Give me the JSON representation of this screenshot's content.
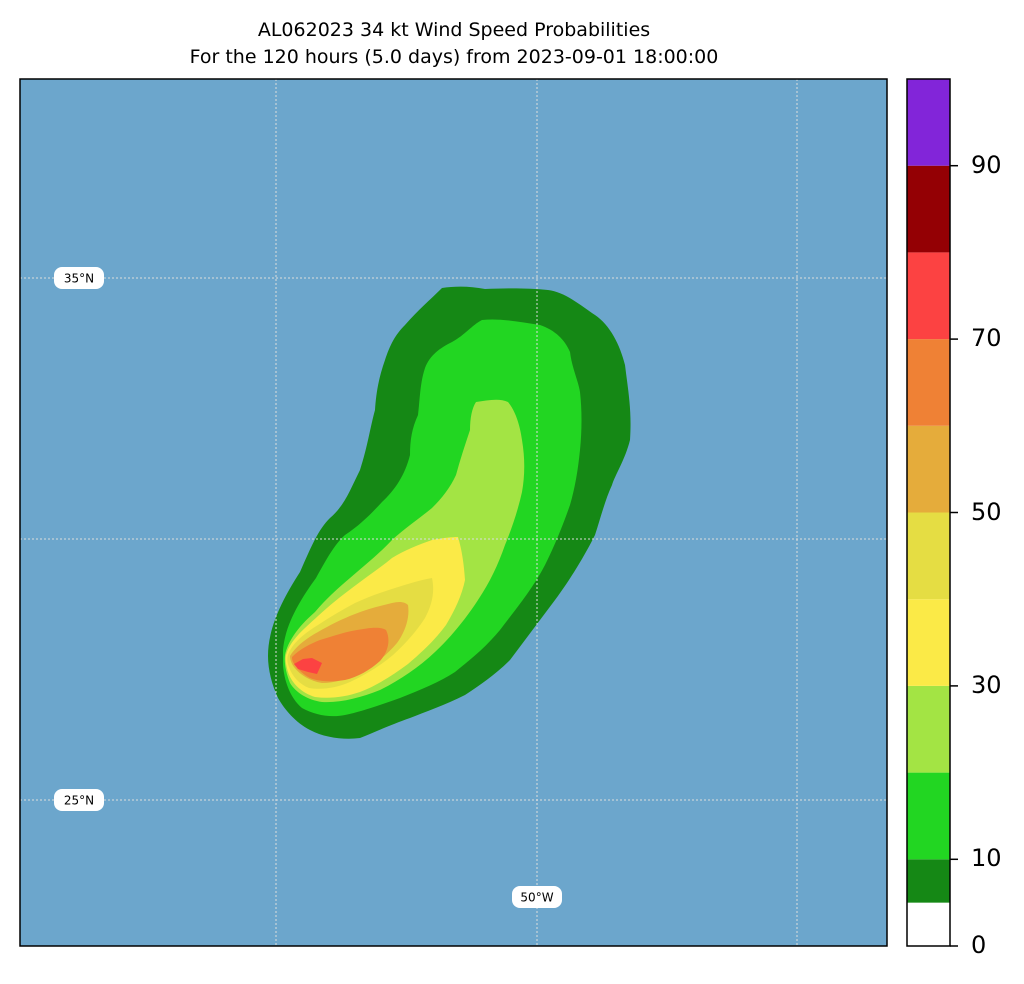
{
  "title": {
    "line1": "AL062023 34 kt Wind Speed Probabilities",
    "line2": "For the 120 hours (5.0 days) from 2023-09-01 18:00:00"
  },
  "map": {
    "ocean_color": "#6ca6cc",
    "gridlines": true,
    "gridline_color": "#dddddd",
    "lat_labels": [
      "35°N",
      "25°N"
    ],
    "lon_labels": [
      "50°W"
    ]
  },
  "colorbar": {
    "tick_labels": [
      "0",
      "10",
      "30",
      "50",
      "70",
      "90"
    ],
    "levels": [
      {
        "from": 0,
        "to": 5,
        "color": "#ffffff"
      },
      {
        "from": 5,
        "to": 10,
        "color": "#158815"
      },
      {
        "from": 10,
        "to": 20,
        "color": "#22d622"
      },
      {
        "from": 20,
        "to": 30,
        "color": "#a3e444"
      },
      {
        "from": 30,
        "to": 40,
        "color": "#fbea47"
      },
      {
        "from": 40,
        "to": 50,
        "color": "#e5dd43"
      },
      {
        "from": 50,
        "to": 60,
        "color": "#e5ac3b"
      },
      {
        "from": 60,
        "to": 70,
        "color": "#ef8135"
      },
      {
        "from": 70,
        "to": 80,
        "color": "#fc4242"
      },
      {
        "from": 80,
        "to": 90,
        "color": "#940004"
      },
      {
        "from": 90,
        "to": 100,
        "color": "#8225d9"
      }
    ]
  },
  "probability_contours": [
    {
      "label": "5-10%",
      "color": "#158815"
    },
    {
      "label": "10-20%",
      "color": "#22d622"
    },
    {
      "label": "20-30%",
      "color": "#a3e444"
    },
    {
      "label": "30-40%",
      "color": "#fbea47"
    },
    {
      "label": "40-50%",
      "color": "#e5dd43"
    },
    {
      "label": "50-60%",
      "color": "#e5ac3b"
    },
    {
      "label": "60-70%",
      "color": "#ef8135"
    },
    {
      "label": "70-80%",
      "color": "#fc4242"
    }
  ]
}
